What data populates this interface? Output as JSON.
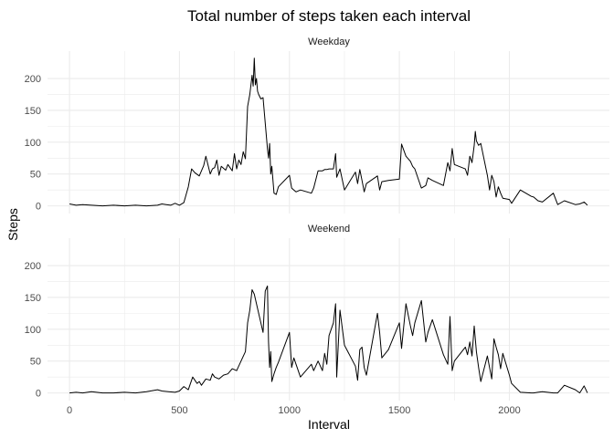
{
  "chart_data": {
    "type": "line",
    "title": "Total number of steps taken each interval",
    "xlabel": "Interval",
    "ylabel": "Steps",
    "xlim": [
      -100,
      2455
    ],
    "ylim": [
      -12,
      243
    ],
    "x_ticks": [
      0,
      500,
      1000,
      1500,
      2000
    ],
    "y_ticks": [
      0,
      50,
      100,
      150,
      200
    ],
    "grid": true,
    "legend": "none",
    "line_color": "#000000",
    "grid_color": "#ebebeb",
    "panels": [
      {
        "label": "Weekday",
        "x": [
          0,
          30,
          60,
          100,
          150,
          200,
          250,
          300,
          350,
          400,
          420,
          440,
          460,
          480,
          500,
          520,
          540,
          555,
          570,
          590,
          610,
          620,
          640,
          650,
          660,
          670,
          680,
          690,
          710,
          720,
          740,
          750,
          760,
          770,
          780,
          790,
          800,
          810,
          820,
          830,
          835,
          840,
          845,
          850,
          855,
          860,
          870,
          880,
          900,
          905,
          910,
          915,
          920,
          930,
          940,
          950,
          1000,
          1010,
          1020,
          1030,
          1050,
          1100,
          1110,
          1130,
          1150,
          1160,
          1170,
          1180,
          1200,
          1210,
          1215,
          1230,
          1250,
          1300,
          1310,
          1320,
          1330,
          1340,
          1350,
          1400,
          1410,
          1420,
          1450,
          1500,
          1510,
          1530,
          1550,
          1560,
          1570,
          1600,
          1620,
          1630,
          1650,
          1700,
          1720,
          1730,
          1740,
          1750,
          1800,
          1810,
          1820,
          1830,
          1840,
          1845,
          1850,
          1860,
          1870,
          1900,
          1910,
          1920,
          1930,
          1940,
          1950,
          1960,
          1970,
          2000,
          2010,
          2050,
          2100,
          2110,
          2130,
          2150,
          2200,
          2220,
          2250,
          2300,
          2320,
          2340,
          2355
        ],
        "y": [
          3,
          1,
          2,
          1,
          0,
          1,
          0,
          1,
          0,
          1,
          3,
          2,
          1,
          4,
          1,
          5,
          30,
          58,
          52,
          47,
          63,
          78,
          50,
          58,
          60,
          72,
          48,
          62,
          56,
          65,
          55,
          82,
          58,
          72,
          65,
          85,
          74,
          156,
          175,
          205,
          188,
          232,
          190,
          200,
          180,
          175,
          168,
          170,
          90,
          75,
          98,
          50,
          62,
          20,
          18,
          30,
          48,
          28,
          25,
          22,
          25,
          20,
          28,
          55,
          55,
          57,
          57,
          58,
          58,
          82,
          45,
          58,
          25,
          53,
          35,
          57,
          40,
          22,
          35,
          47,
          25,
          38,
          40,
          42,
          97,
          78,
          70,
          62,
          58,
          28,
          32,
          44,
          40,
          32,
          68,
          55,
          90,
          65,
          58,
          48,
          78,
          68,
          95,
          117,
          102,
          95,
          98,
          48,
          25,
          48,
          38,
          14,
          30,
          20,
          12,
          10,
          4,
          25,
          15,
          14,
          8,
          6,
          20,
          2,
          8,
          2,
          3,
          6,
          1
        ]
      },
      {
        "label": "Weekend",
        "x": [
          0,
          30,
          60,
          100,
          150,
          200,
          250,
          300,
          350,
          400,
          420,
          450,
          480,
          500,
          520,
          540,
          560,
          580,
          590,
          600,
          620,
          640,
          650,
          660,
          680,
          700,
          720,
          740,
          760,
          780,
          800,
          810,
          820,
          830,
          840,
          850,
          880,
          890,
          900,
          905,
          910,
          915,
          920,
          930,
          940,
          950,
          1000,
          1010,
          1020,
          1030,
          1050,
          1100,
          1110,
          1130,
          1150,
          1160,
          1170,
          1180,
          1200,
          1210,
          1215,
          1230,
          1250,
          1300,
          1310,
          1320,
          1330,
          1340,
          1350,
          1400,
          1410,
          1420,
          1450,
          1500,
          1510,
          1530,
          1550,
          1560,
          1570,
          1600,
          1620,
          1630,
          1650,
          1700,
          1720,
          1730,
          1740,
          1750,
          1800,
          1810,
          1820,
          1830,
          1840,
          1845,
          1850,
          1860,
          1870,
          1900,
          1910,
          1920,
          1930,
          1940,
          1950,
          1960,
          1970,
          2000,
          2010,
          2050,
          2100,
          2110,
          2130,
          2150,
          2200,
          2220,
          2250,
          2300,
          2320,
          2340,
          2355
        ],
        "y": [
          0,
          1,
          0,
          2,
          0,
          0,
          1,
          0,
          2,
          5,
          3,
          2,
          1,
          3,
          10,
          5,
          25,
          15,
          18,
          12,
          22,
          20,
          30,
          25,
          22,
          28,
          30,
          38,
          35,
          50,
          65,
          110,
          130,
          162,
          155,
          140,
          95,
          160,
          168,
          80,
          40,
          65,
          18,
          30,
          40,
          48,
          95,
          40,
          55,
          45,
          25,
          45,
          35,
          50,
          35,
          62,
          45,
          90,
          110,
          140,
          25,
          130,
          75,
          42,
          20,
          68,
          72,
          40,
          28,
          125,
          95,
          55,
          68,
          110,
          70,
          140,
          105,
          90,
          110,
          145,
          80,
          95,
          115,
          60,
          45,
          120,
          35,
          50,
          72,
          60,
          80,
          58,
          105,
          85,
          65,
          40,
          18,
          58,
          40,
          22,
          85,
          72,
          60,
          38,
          62,
          28,
          15,
          1,
          0,
          0,
          1,
          2,
          0,
          0,
          12,
          5,
          0,
          11,
          0
        ]
      }
    ]
  }
}
